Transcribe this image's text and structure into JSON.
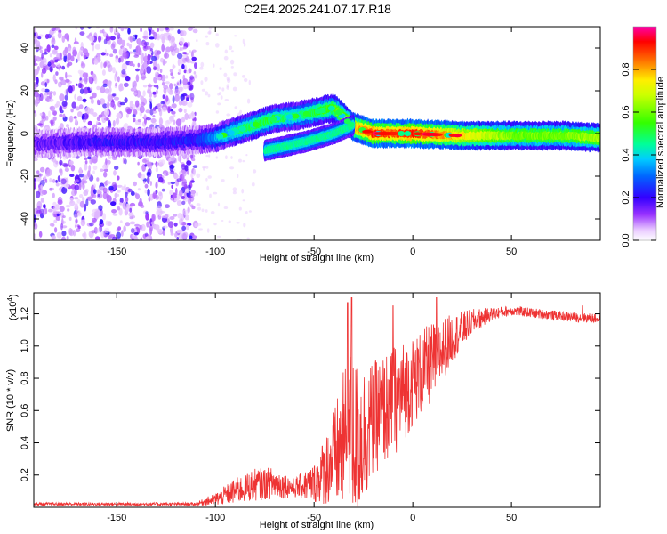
{
  "title": "C2E4.2025.241.07.17.R18",
  "chart_data": [
    {
      "type": "heatmap",
      "name": "spectrogram",
      "xlabel": "Height of straight line (km)",
      "ylabel": "Frequency (Hz)",
      "xlim": [
        -192,
        95
      ],
      "ylim": [
        -50,
        50
      ],
      "xticks": [
        -150,
        -100,
        -50,
        0,
        50
      ],
      "xtick_labels": [
        "-150",
        "-100",
        "-50",
        "0",
        "50"
      ],
      "yticks": [
        -40,
        -20,
        0,
        20,
        40
      ],
      "ytick_labels": [
        "-40",
        "-20",
        "0",
        "20",
        "40"
      ],
      "noise_region": [
        -192,
        -110
      ],
      "track": [
        {
          "x": -192,
          "y": -5,
          "a": 0.15
        },
        {
          "x": -170,
          "y": -4,
          "a": 0.18
        },
        {
          "x": -150,
          "y": -4,
          "a": 0.2
        },
        {
          "x": -130,
          "y": -4,
          "a": 0.2
        },
        {
          "x": -110,
          "y": -3,
          "a": 0.22
        },
        {
          "x": -100,
          "y": -2,
          "a": 0.35
        },
        {
          "x": -90,
          "y": 1,
          "a": 0.45
        },
        {
          "x": -80,
          "y": 4,
          "a": 0.5
        },
        {
          "x": -70,
          "y": 7,
          "a": 0.5
        },
        {
          "x": -60,
          "y": 8,
          "a": 0.45
        },
        {
          "x": -50,
          "y": 10,
          "a": 0.5
        },
        {
          "x": -40,
          "y": 12,
          "a": 0.55
        },
        {
          "x": -30,
          "y": 3,
          "a": 0.75
        },
        {
          "x": -20,
          "y": 0,
          "a": 0.9
        },
        {
          "x": -10,
          "y": 0,
          "a": 0.85
        },
        {
          "x": 0,
          "y": 0,
          "a": 0.9
        },
        {
          "x": 25,
          "y": -1,
          "a": 0.75
        },
        {
          "x": 50,
          "y": -1,
          "a": 0.6
        },
        {
          "x": 75,
          "y": -1,
          "a": 0.6
        },
        {
          "x": 95,
          "y": -2,
          "a": 0.65
        }
      ],
      "secondary_track": [
        {
          "x": -75,
          "y": -8
        },
        {
          "x": -55,
          "y": -4
        },
        {
          "x": -40,
          "y": 0
        },
        {
          "x": -30,
          "y": 4
        }
      ],
      "colorbar": {
        "label": "Normalized spectral amplitude",
        "ticks": [
          0.0,
          0.2,
          0.4,
          0.6,
          0.8
        ],
        "tick_labels": [
          "0.0",
          "0.2",
          "0.4",
          "0.6",
          "0.8"
        ],
        "range": [
          0,
          1
        ]
      }
    },
    {
      "type": "line",
      "name": "snr",
      "xlabel": "Height of straight line (km)",
      "ylabel": "SNR (10 * v/v)",
      "y_multiplier_label": "(x10",
      "y_multiplier_exp": "4",
      "y_multiplier_close": ")",
      "xlim": [
        -192,
        95
      ],
      "ylim": [
        0,
        1.33
      ],
      "xticks": [
        -150,
        -100,
        -50,
        0,
        50
      ],
      "xtick_labels": [
        "-150",
        "-100",
        "-50",
        "0",
        "50"
      ],
      "yticks": [
        0.2,
        0.4,
        0.6,
        0.8,
        1.0,
        1.2
      ],
      "ytick_labels": [
        "0.2",
        "0.4",
        "0.6",
        "0.8",
        "1.0",
        "1.2"
      ],
      "color": "#ee3333",
      "envelope": [
        {
          "x": -192,
          "base": 0.02,
          "noise": 0.01
        },
        {
          "x": -110,
          "base": 0.02,
          "noise": 0.01
        },
        {
          "x": -100,
          "base": 0.05,
          "noise": 0.04
        },
        {
          "x": -90,
          "base": 0.1,
          "noise": 0.08
        },
        {
          "x": -80,
          "base": 0.14,
          "noise": 0.1
        },
        {
          "x": -70,
          "base": 0.15,
          "noise": 0.1
        },
        {
          "x": -60,
          "base": 0.12,
          "noise": 0.06
        },
        {
          "x": -50,
          "base": 0.15,
          "noise": 0.12
        },
        {
          "x": -40,
          "base": 0.3,
          "noise": 0.3
        },
        {
          "x": -32,
          "base": 0.45,
          "noise": 0.55
        },
        {
          "x": -28,
          "base": 0.4,
          "noise": 0.5
        },
        {
          "x": -20,
          "base": 0.55,
          "noise": 0.35
        },
        {
          "x": -10,
          "base": 0.65,
          "noise": 0.35
        },
        {
          "x": 0,
          "base": 0.78,
          "noise": 0.28
        },
        {
          "x": 10,
          "base": 0.9,
          "noise": 0.25
        },
        {
          "x": 20,
          "base": 1.05,
          "noise": 0.15
        },
        {
          "x": 30,
          "base": 1.15,
          "noise": 0.08
        },
        {
          "x": 40,
          "base": 1.2,
          "noise": 0.04
        },
        {
          "x": 50,
          "base": 1.22,
          "noise": 0.03
        },
        {
          "x": 65,
          "base": 1.2,
          "noise": 0.03
        },
        {
          "x": 80,
          "base": 1.18,
          "noise": 0.03
        },
        {
          "x": 95,
          "base": 1.17,
          "noise": 0.03
        }
      ],
      "peaks": [
        {
          "x": -33,
          "y": 1.27
        },
        {
          "x": -31,
          "y": 1.3
        },
        {
          "x": -10,
          "y": 1.25
        },
        {
          "x": 12,
          "y": 1.3
        },
        {
          "x": 86,
          "y": 1.25
        }
      ]
    }
  ]
}
